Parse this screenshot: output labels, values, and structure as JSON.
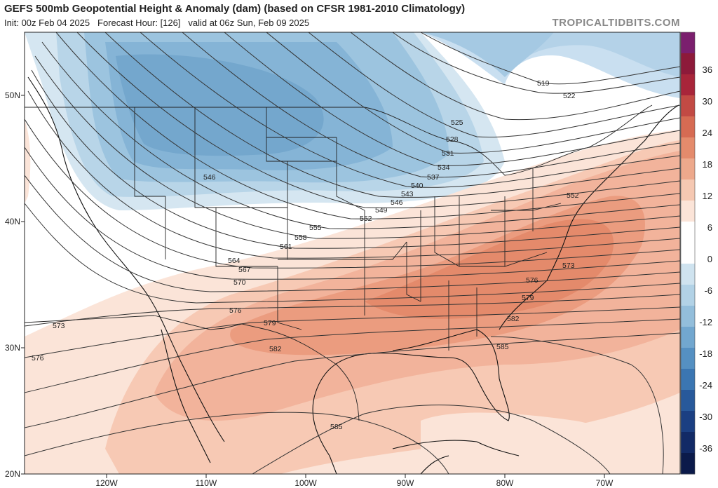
{
  "header": {
    "title": "GEFS 500mb Geopotential Height & Anomaly (dam) (based on CFSR 1981-2010 Climatology)",
    "init_label": "Init: 00z Feb 04 2025",
    "forecast_label": "Forecast Hour: [126]",
    "valid_label": "valid at 06z Sun, Feb 09 2025",
    "credit": "TROPICALTIDBITS.COM"
  },
  "axes": {
    "lat_labels": [
      "50N",
      "40N",
      "30N",
      "20N"
    ],
    "lon_labels": [
      "120W",
      "110W",
      "100W",
      "90W",
      "80W",
      "70W"
    ]
  },
  "colorbar": {
    "labels": [
      "36",
      "30",
      "24",
      "18",
      "12",
      "6",
      "0",
      "-6",
      "-12",
      "-18",
      "-24",
      "-30",
      "-36"
    ],
    "colors": [
      "#7b1f6e",
      "#8d1a3a",
      "#a8253a",
      "#c24a44",
      "#d66b53",
      "#e48b6c",
      "#eda98c",
      "#f5c8b2",
      "#fbe4d8",
      "#ffffff",
      "#ffffff",
      "#cfe3ef",
      "#b2d2e6",
      "#93bedb",
      "#72a7cf",
      "#5590c2",
      "#3b76b2",
      "#28599b",
      "#1b3f82",
      "#122a66",
      "#0b1a4a"
    ]
  },
  "contours": {
    "labels": [
      {
        "text": "519"
      },
      {
        "text": "522"
      },
      {
        "text": "525"
      },
      {
        "text": "528"
      },
      {
        "text": "531"
      },
      {
        "text": "534"
      },
      {
        "text": "537"
      },
      {
        "text": "540"
      },
      {
        "text": "543"
      },
      {
        "text": "546"
      },
      {
        "text": "546"
      },
      {
        "text": "549"
      },
      {
        "text": "552"
      },
      {
        "text": "552"
      },
      {
        "text": "555"
      },
      {
        "text": "558"
      },
      {
        "text": "561"
      },
      {
        "text": "564"
      },
      {
        "text": "567"
      },
      {
        "text": "570"
      },
      {
        "text": "573"
      },
      {
        "text": "573"
      },
      {
        "text": "576"
      },
      {
        "text": "576"
      },
      {
        "text": "576"
      },
      {
        "text": "579"
      },
      {
        "text": "579"
      },
      {
        "text": "582"
      },
      {
        "text": "582"
      },
      {
        "text": "585"
      },
      {
        "text": "585"
      }
    ]
  }
}
